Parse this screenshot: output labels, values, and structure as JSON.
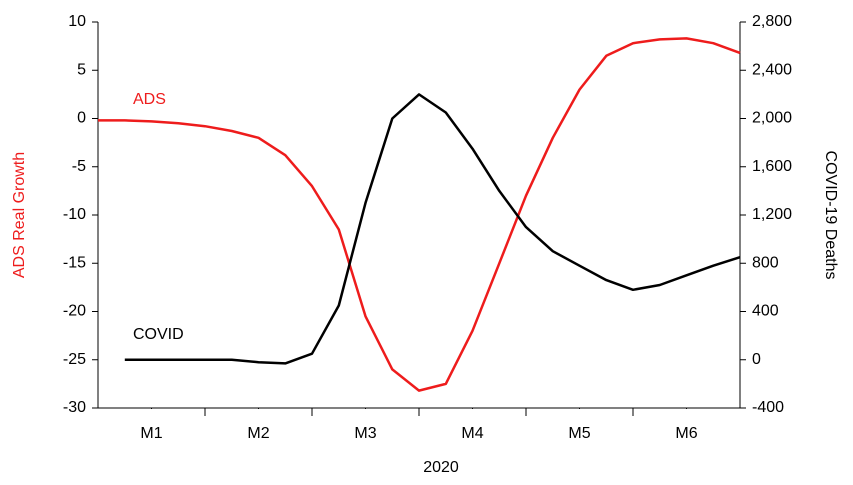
{
  "chart_data": {
    "type": "line",
    "xlabel": "2020",
    "ylabel": "ADS Real Growth",
    "y2label": "COVID-19 Deaths",
    "x": [
      0,
      0.25,
      0.5,
      0.75,
      1,
      1.25,
      1.5,
      1.75,
      2,
      2.25,
      2.5,
      2.75,
      3,
      3.25,
      3.5,
      3.75,
      4,
      4.25,
      4.5,
      4.75,
      5,
      5.25,
      5.5,
      5.75,
      6
    ],
    "xlim": [
      0,
      6
    ],
    "xticks": [
      {
        "value": 0.5,
        "label": "M1"
      },
      {
        "value": 1.5,
        "label": "M2"
      },
      {
        "value": 2.5,
        "label": "M3"
      },
      {
        "value": 3.5,
        "label": "M4"
      },
      {
        "value": 4.5,
        "label": "M5"
      },
      {
        "value": 5.5,
        "label": "M6"
      }
    ],
    "ylim": [
      -30,
      10
    ],
    "yticks": [
      -30,
      -25,
      -20,
      -15,
      -10,
      -5,
      0,
      5,
      10
    ],
    "y2lim": [
      -400,
      2800
    ],
    "y2ticks": [
      {
        "value": -400,
        "label": "-400"
      },
      0,
      400,
      800,
      {
        "value": 1200,
        "label": "1,200"
      },
      {
        "value": 1600,
        "label": "1,600"
      },
      {
        "value": 2000,
        "label": "2,000"
      },
      {
        "value": 2400,
        "label": "2,400"
      },
      {
        "value": 2800,
        "label": "2,800"
      }
    ],
    "series": [
      {
        "name": "ADS",
        "color": "#ee1c1c",
        "axis": "y",
        "values": [
          -0.2,
          -0.2,
          -0.3,
          -0.5,
          -0.8,
          -1.3,
          -2,
          -3.8,
          -7,
          -11.5,
          -20.5,
          -26,
          -28.2,
          -27.5,
          -22,
          -15,
          -8,
          -2,
          3,
          6.5,
          7.8,
          8.2,
          8.3,
          7.8,
          6.8
        ]
      },
      {
        "name": "COVID",
        "color": "#000000",
        "axis": "y2",
        "values": [
          null,
          0,
          0,
          0,
          0,
          0,
          -20,
          -30,
          50,
          450,
          1300,
          2000,
          2200,
          2050,
          1750,
          1400,
          1100,
          900,
          780,
          660,
          580,
          620,
          700,
          780,
          850
        ]
      }
    ]
  }
}
